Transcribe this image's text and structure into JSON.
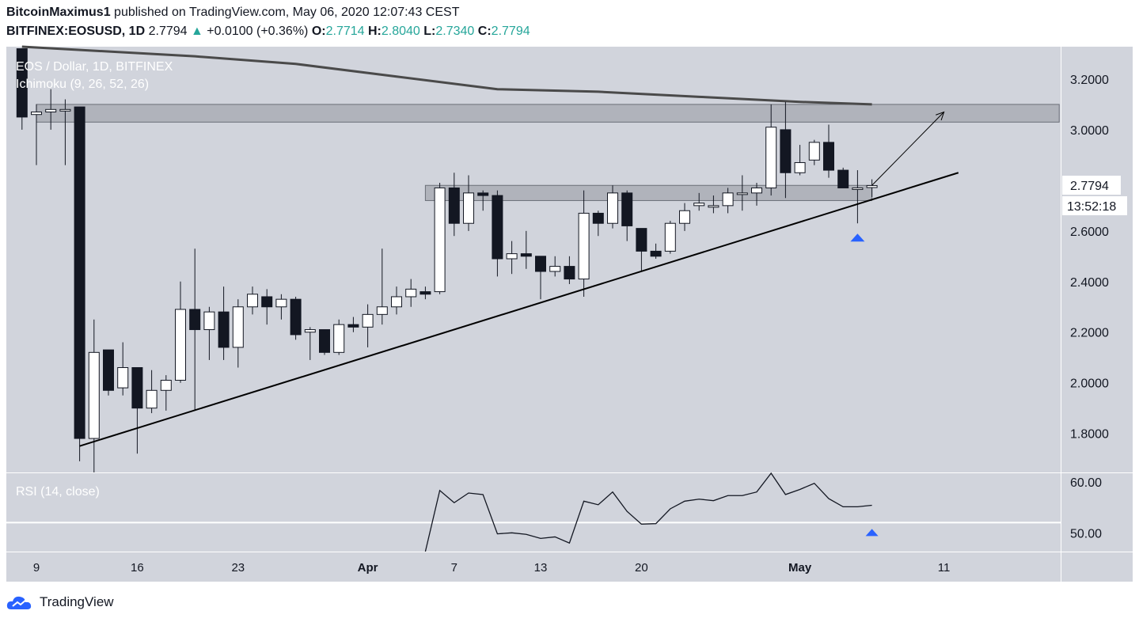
{
  "header": {
    "author": "BitcoinMaximus1",
    "published": "published on TradingView.com, May 06, 2020 12:07:43 CEST",
    "symbol": "BITFINEX:EOSUSD, 1D",
    "last": "2.7794",
    "change": "+0.0100 (+0.36%)",
    "o_label": "O:",
    "o": "2.7714",
    "h_label": "H:",
    "h": "2.8040",
    "l_label": "L:",
    "l": "2.7340",
    "c_label": "C:",
    "c": "2.7794"
  },
  "legend": {
    "title": "EOS / Dollar, 1D, BITFINEX",
    "indicator": "Ichimoku (9, 26, 52, 26)",
    "rsi": "RSI (14, close)"
  },
  "price_label": "2.7794",
  "countdown": "13:52:18",
  "brand": "TradingView",
  "colors": {
    "pane_bg": "#d1d4dc",
    "candle_up": "#ffffff",
    "candle_down": "#131722",
    "marker": "#2962ff",
    "ma": "#4a4a4a",
    "zone": "#9598a1"
  },
  "chart_data": [
    {
      "type": "candlestick",
      "title": "EOS / Dollar, 1D, BITFINEX",
      "ylim": [
        1.63,
        3.32
      ],
      "y_ticks": [
        "3.2000",
        "3.0000",
        "2.8000",
        "2.6000",
        "2.4000",
        "2.2000",
        "2.0000",
        "1.8000"
      ],
      "x_ticks": [
        "9",
        "16",
        "23",
        "Apr",
        "7",
        "13",
        "20",
        "May",
        "11"
      ],
      "candles": [
        {
          "date": "2020-03-08",
          "o": 3.32,
          "h": 3.32,
          "l": 3.0,
          "c": 3.05
        },
        {
          "date": "2020-03-09",
          "o": 3.06,
          "h": 3.1,
          "l": 2.86,
          "c": 3.07
        },
        {
          "date": "2020-03-10",
          "o": 3.07,
          "h": 3.16,
          "l": 3.0,
          "c": 3.08
        },
        {
          "date": "2020-03-11",
          "o": 3.08,
          "h": 3.12,
          "l": 2.86,
          "c": 3.08
        },
        {
          "date": "2020-03-12",
          "o": 3.09,
          "h": 3.09,
          "l": 1.69,
          "c": 1.78
        },
        {
          "date": "2020-03-13",
          "o": 1.78,
          "h": 2.25,
          "l": 1.63,
          "c": 2.12
        },
        {
          "date": "2020-03-14",
          "o": 2.13,
          "h": 2.13,
          "l": 1.95,
          "c": 1.97
        },
        {
          "date": "2020-03-15",
          "o": 1.98,
          "h": 2.16,
          "l": 1.95,
          "c": 2.06
        },
        {
          "date": "2020-03-16",
          "o": 2.06,
          "h": 2.06,
          "l": 1.72,
          "c": 1.9
        },
        {
          "date": "2020-03-17",
          "o": 1.9,
          "h": 2.05,
          "l": 1.88,
          "c": 1.97
        },
        {
          "date": "2020-03-18",
          "o": 1.97,
          "h": 2.03,
          "l": 1.89,
          "c": 2.01
        },
        {
          "date": "2020-03-19",
          "o": 2.01,
          "h": 2.4,
          "l": 2.0,
          "c": 2.29
        },
        {
          "date": "2020-03-20",
          "o": 2.29,
          "h": 2.53,
          "l": 1.89,
          "c": 2.21
        },
        {
          "date": "2020-03-21",
          "o": 2.21,
          "h": 2.3,
          "l": 2.09,
          "c": 2.28
        },
        {
          "date": "2020-03-22",
          "o": 2.28,
          "h": 2.38,
          "l": 2.09,
          "c": 2.14
        },
        {
          "date": "2020-03-23",
          "o": 2.14,
          "h": 2.33,
          "l": 2.06,
          "c": 2.3
        },
        {
          "date": "2020-03-24",
          "o": 2.3,
          "h": 2.38,
          "l": 2.27,
          "c": 2.35
        },
        {
          "date": "2020-03-25",
          "o": 2.34,
          "h": 2.37,
          "l": 2.23,
          "c": 2.3
        },
        {
          "date": "2020-03-26",
          "o": 2.3,
          "h": 2.35,
          "l": 2.25,
          "c": 2.33
        },
        {
          "date": "2020-03-27",
          "o": 2.33,
          "h": 2.34,
          "l": 2.17,
          "c": 2.19
        },
        {
          "date": "2020-03-28",
          "o": 2.2,
          "h": 2.22,
          "l": 2.09,
          "c": 2.21
        },
        {
          "date": "2020-03-29",
          "o": 2.21,
          "h": 2.21,
          "l": 2.11,
          "c": 2.12
        },
        {
          "date": "2020-03-30",
          "o": 2.12,
          "h": 2.25,
          "l": 2.11,
          "c": 2.23
        },
        {
          "date": "2020-03-31",
          "o": 2.23,
          "h": 2.26,
          "l": 2.2,
          "c": 2.22
        },
        {
          "date": "2020-04-01",
          "o": 2.22,
          "h": 2.31,
          "l": 2.14,
          "c": 2.27
        },
        {
          "date": "2020-04-02",
          "o": 2.27,
          "h": 2.53,
          "l": 2.23,
          "c": 2.3
        },
        {
          "date": "2020-04-03",
          "o": 2.3,
          "h": 2.38,
          "l": 2.27,
          "c": 2.34
        },
        {
          "date": "2020-04-04",
          "o": 2.34,
          "h": 2.41,
          "l": 2.3,
          "c": 2.37
        },
        {
          "date": "2020-04-05",
          "o": 2.36,
          "h": 2.38,
          "l": 2.33,
          "c": 2.35
        },
        {
          "date": "2020-04-06",
          "o": 2.36,
          "h": 2.79,
          "l": 2.35,
          "c": 2.77
        },
        {
          "date": "2020-04-07",
          "o": 2.77,
          "h": 2.83,
          "l": 2.58,
          "c": 2.63
        },
        {
          "date": "2020-04-08",
          "o": 2.63,
          "h": 2.82,
          "l": 2.6,
          "c": 2.75
        },
        {
          "date": "2020-04-09",
          "o": 2.75,
          "h": 2.76,
          "l": 2.68,
          "c": 2.74
        },
        {
          "date": "2020-04-10",
          "o": 2.74,
          "h": 2.76,
          "l": 2.42,
          "c": 2.49
        },
        {
          "date": "2020-04-11",
          "o": 2.49,
          "h": 2.56,
          "l": 2.43,
          "c": 2.51
        },
        {
          "date": "2020-04-12",
          "o": 2.51,
          "h": 2.6,
          "l": 2.45,
          "c": 2.5
        },
        {
          "date": "2020-04-13",
          "o": 2.5,
          "h": 2.5,
          "l": 2.33,
          "c": 2.44
        },
        {
          "date": "2020-04-14",
          "o": 2.44,
          "h": 2.5,
          "l": 2.42,
          "c": 2.46
        },
        {
          "date": "2020-04-15",
          "o": 2.46,
          "h": 2.5,
          "l": 2.39,
          "c": 2.41
        },
        {
          "date": "2020-04-16",
          "o": 2.41,
          "h": 2.76,
          "l": 2.34,
          "c": 2.67
        },
        {
          "date": "2020-04-17",
          "o": 2.67,
          "h": 2.68,
          "l": 2.58,
          "c": 2.63
        },
        {
          "date": "2020-04-18",
          "o": 2.63,
          "h": 2.78,
          "l": 2.61,
          "c": 2.75
        },
        {
          "date": "2020-04-19",
          "o": 2.75,
          "h": 2.76,
          "l": 2.56,
          "c": 2.62
        },
        {
          "date": "2020-04-20",
          "o": 2.61,
          "h": 2.61,
          "l": 2.44,
          "c": 2.52
        },
        {
          "date": "2020-04-21",
          "o": 2.52,
          "h": 2.55,
          "l": 2.49,
          "c": 2.5
        },
        {
          "date": "2020-04-22",
          "o": 2.52,
          "h": 2.64,
          "l": 2.51,
          "c": 2.63
        },
        {
          "date": "2020-04-23",
          "o": 2.63,
          "h": 2.71,
          "l": 2.6,
          "c": 2.68
        },
        {
          "date": "2020-04-24",
          "o": 2.7,
          "h": 2.75,
          "l": 2.68,
          "c": 2.71
        },
        {
          "date": "2020-04-25",
          "o": 2.7,
          "h": 2.74,
          "l": 2.67,
          "c": 2.7
        },
        {
          "date": "2020-04-26",
          "o": 2.7,
          "h": 2.77,
          "l": 2.67,
          "c": 2.75
        },
        {
          "date": "2020-04-27",
          "o": 2.75,
          "h": 2.82,
          "l": 2.68,
          "c": 2.75
        },
        {
          "date": "2020-04-28",
          "o": 2.75,
          "h": 2.79,
          "l": 2.7,
          "c": 2.77
        },
        {
          "date": "2020-04-29",
          "o": 2.77,
          "h": 3.1,
          "l": 2.74,
          "c": 3.01
        },
        {
          "date": "2020-04-30",
          "o": 3.0,
          "h": 3.11,
          "l": 2.73,
          "c": 2.83
        },
        {
          "date": "2020-05-01",
          "o": 2.83,
          "h": 2.94,
          "l": 2.82,
          "c": 2.87
        },
        {
          "date": "2020-05-02",
          "o": 2.88,
          "h": 2.96,
          "l": 2.86,
          "c": 2.95
        },
        {
          "date": "2020-05-03",
          "o": 2.95,
          "h": 3.02,
          "l": 2.81,
          "c": 2.84
        },
        {
          "date": "2020-05-04",
          "o": 2.84,
          "h": 2.85,
          "l": 2.77,
          "c": 2.77
        },
        {
          "date": "2020-05-05",
          "o": 2.77,
          "h": 2.84,
          "l": 2.63,
          "c": 2.77
        },
        {
          "date": "2020-05-06",
          "o": 2.7714,
          "h": 2.804,
          "l": 2.734,
          "c": 2.7794
        }
      ],
      "moving_average": [
        {
          "date": "2020-03-08",
          "v": 3.33
        },
        {
          "date": "2020-03-20",
          "v": 3.29
        },
        {
          "date": "2020-03-27",
          "v": 3.26
        },
        {
          "date": "2020-04-03",
          "v": 3.21
        },
        {
          "date": "2020-04-10",
          "v": 3.16
        },
        {
          "date": "2020-04-17",
          "v": 3.15
        },
        {
          "date": "2020-04-24",
          "v": 3.13
        },
        {
          "date": "2020-05-01",
          "v": 3.11
        },
        {
          "date": "2020-05-06",
          "v": 3.1
        }
      ],
      "resistance_zone": {
        "from": "2020-03-09",
        "to": "2020-05-19",
        "low": 3.03,
        "high": 3.1
      },
      "support_zone": {
        "from": "2020-04-05",
        "to": "2020-05-06",
        "low": 2.72,
        "high": 2.78
      },
      "trendline": [
        {
          "date": "2020-03-12",
          "v": 1.75
        },
        {
          "date": "2020-05-12",
          "v": 2.83
        }
      ],
      "projection_arrow": [
        {
          "date": "2020-05-06",
          "v": 2.78
        },
        {
          "date": "2020-05-11",
          "v": 3.07
        }
      ],
      "markers": [
        {
          "date": "2020-05-05",
          "v": 2.58
        }
      ]
    },
    {
      "type": "line",
      "title": "RSI (14, close)",
      "ylim": [
        45,
        60
      ],
      "y_ticks": [
        "60.00",
        "50.00"
      ],
      "series": [
        {
          "name": "RSI (14, close)",
          "points": [
            {
              "date": "2020-04-05",
              "v": 44.0
            },
            {
              "date": "2020-04-06",
              "v": 58.3
            },
            {
              "date": "2020-04-07",
              "v": 55.9
            },
            {
              "date": "2020-04-08",
              "v": 57.8
            },
            {
              "date": "2020-04-09",
              "v": 57.5
            },
            {
              "date": "2020-04-10",
              "v": 49.8
            },
            {
              "date": "2020-04-11",
              "v": 50.0
            },
            {
              "date": "2020-04-12",
              "v": 49.7
            },
            {
              "date": "2020-04-13",
              "v": 48.9
            },
            {
              "date": "2020-04-14",
              "v": 49.2
            },
            {
              "date": "2020-04-15",
              "v": 48.0
            },
            {
              "date": "2020-04-16",
              "v": 56.2
            },
            {
              "date": "2020-04-17",
              "v": 55.5
            },
            {
              "date": "2020-04-18",
              "v": 58.0
            },
            {
              "date": "2020-04-19",
              "v": 54.2
            },
            {
              "date": "2020-04-20",
              "v": 51.7
            },
            {
              "date": "2020-04-21",
              "v": 51.8
            },
            {
              "date": "2020-04-22",
              "v": 54.7
            },
            {
              "date": "2020-04-23",
              "v": 56.2
            },
            {
              "date": "2020-04-24",
              "v": 56.6
            },
            {
              "date": "2020-04-25",
              "v": 56.3
            },
            {
              "date": "2020-04-26",
              "v": 57.3
            },
            {
              "date": "2020-04-27",
              "v": 57.3
            },
            {
              "date": "2020-04-28",
              "v": 58.0
            },
            {
              "date": "2020-04-29",
              "v": 61.8
            },
            {
              "date": "2020-04-30",
              "v": 57.5
            },
            {
              "date": "2020-05-01",
              "v": 58.5
            },
            {
              "date": "2020-05-02",
              "v": 59.7
            },
            {
              "date": "2020-05-03",
              "v": 56.7
            },
            {
              "date": "2020-05-04",
              "v": 55.1
            },
            {
              "date": "2020-05-05",
              "v": 55.1
            },
            {
              "date": "2020-05-06",
              "v": 55.4
            }
          ]
        }
      ],
      "levels": [
        52.0
      ],
      "markers": [
        {
          "date": "2020-05-06",
          "v": 50.3
        }
      ]
    }
  ]
}
